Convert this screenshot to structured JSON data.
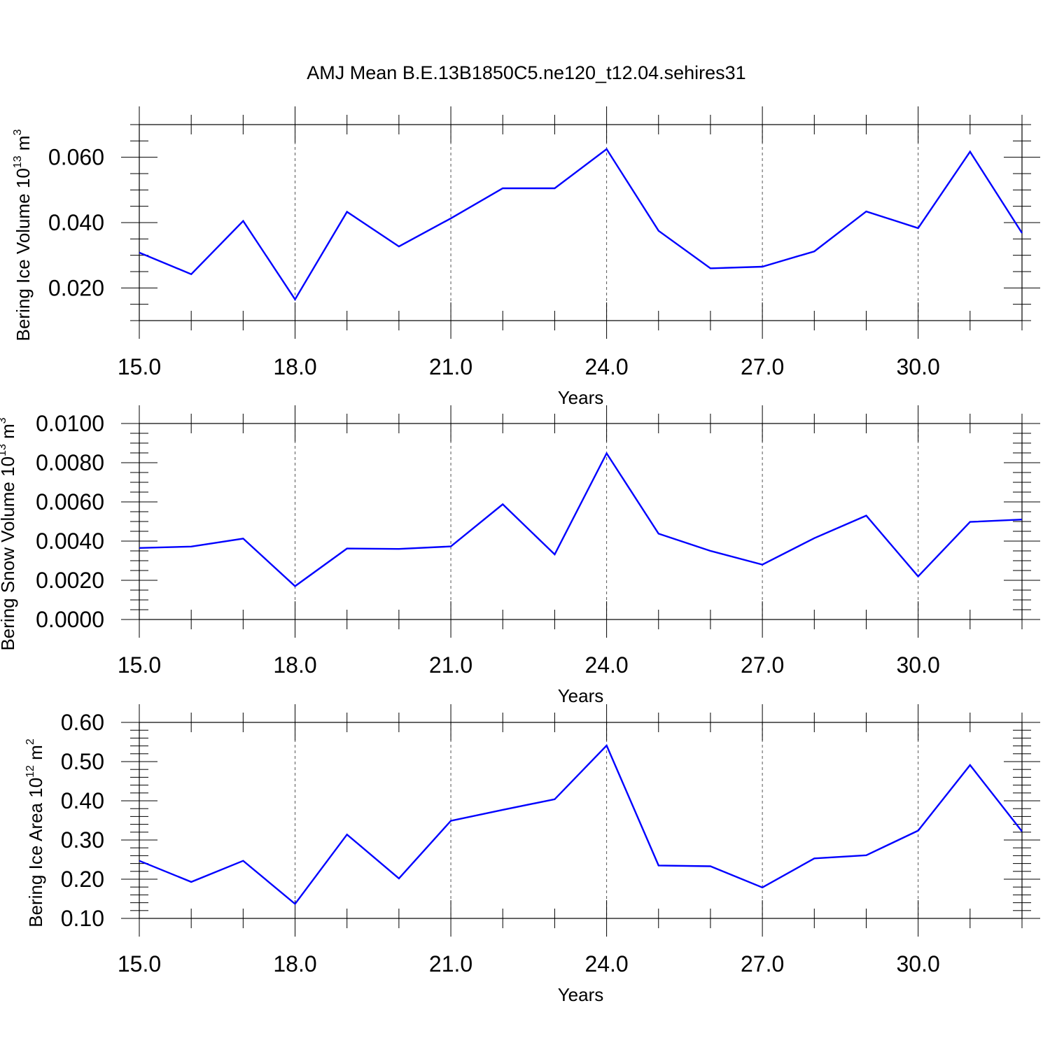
{
  "colors": {
    "line": "#0000ff",
    "axis": "#000000",
    "grid": "#555555"
  },
  "title": "AMJ Mean B.E.13B1850C5.ne120_t12.04.sehires31",
  "chart_data": [
    {
      "type": "line",
      "ylabel": "Bering Ice Volume 10",
      "ylabel_sup1": "13",
      "ylabel_mid": " m",
      "ylabel_sup2": "3",
      "xlabel": "Years",
      "xlim": [
        15,
        32
      ],
      "ylim": [
        0.01,
        0.07
      ],
      "x_ticks": [
        15,
        18,
        21,
        24,
        27,
        30
      ],
      "x_tick_labels": [
        "15.0",
        "18.0",
        "21.0",
        "24.0",
        "27.0",
        "30.0"
      ],
      "y_ticks": [
        0.02,
        0.04,
        0.06
      ],
      "y_tick_labels": [
        "0.020",
        "0.040",
        "0.060"
      ],
      "y_minor_step": 0.005,
      "grid": "vertical dashed at labeled x ticks",
      "x": [
        15,
        16,
        17,
        18,
        19,
        20,
        21,
        22,
        23,
        24,
        25,
        26,
        27,
        28,
        29,
        30,
        31,
        32
      ],
      "values": [
        0.0308,
        0.0242,
        0.0405,
        0.0165,
        0.0433,
        0.0327,
        0.0413,
        0.0505,
        0.0505,
        0.0625,
        0.0375,
        0.026,
        0.0265,
        0.0312,
        0.0434,
        0.0383,
        0.0617,
        0.0368
      ]
    },
    {
      "type": "line",
      "ylabel": "Bering Snow Volume 10",
      "ylabel_sup1": "13",
      "ylabel_mid": " m",
      "ylabel_sup2": "3",
      "xlabel": "Years",
      "xlim": [
        15,
        32
      ],
      "ylim": [
        0.0,
        0.01
      ],
      "x_ticks": [
        15,
        18,
        21,
        24,
        27,
        30
      ],
      "x_tick_labels": [
        "15.0",
        "18.0",
        "21.0",
        "24.0",
        "27.0",
        "30.0"
      ],
      "y_ticks": [
        0.0,
        0.002,
        0.004,
        0.006,
        0.008,
        0.01
      ],
      "y_tick_labels": [
        "0.0000",
        "0.0020",
        "0.0040",
        "0.0060",
        "0.0080",
        "0.0100"
      ],
      "y_minor_step": 0.0005,
      "grid": "vertical dashed at labeled x ticks",
      "x": [
        15,
        16,
        17,
        18,
        19,
        20,
        21,
        22,
        23,
        24,
        25,
        26,
        27,
        28,
        29,
        30,
        31,
        32
      ],
      "values": [
        0.00365,
        0.00372,
        0.00413,
        0.0017,
        0.00362,
        0.0036,
        0.00373,
        0.00588,
        0.00332,
        0.00848,
        0.00438,
        0.0035,
        0.0028,
        0.00415,
        0.0053,
        0.0022,
        0.00498,
        0.0051
      ]
    },
    {
      "type": "line",
      "ylabel": "Bering Ice Area 10",
      "ylabel_sup1": "12",
      "ylabel_mid": " m",
      "ylabel_sup2": "2",
      "xlabel": "Years",
      "xlim": [
        15,
        32
      ],
      "ylim": [
        0.1,
        0.6
      ],
      "x_ticks": [
        15,
        18,
        21,
        24,
        27,
        30
      ],
      "x_tick_labels": [
        "15.0",
        "18.0",
        "21.0",
        "24.0",
        "27.0",
        "30.0"
      ],
      "y_ticks": [
        0.1,
        0.2,
        0.3,
        0.4,
        0.5,
        0.6
      ],
      "y_tick_labels": [
        "0.10",
        "0.20",
        "0.30",
        "0.40",
        "0.50",
        "0.60"
      ],
      "y_minor_step": 0.02,
      "grid": "vertical dashed at labeled x ticks",
      "x": [
        15,
        16,
        17,
        18,
        19,
        20,
        21,
        22,
        23,
        24,
        25,
        26,
        27,
        28,
        29,
        30,
        31,
        32
      ],
      "values": [
        0.247,
        0.193,
        0.247,
        0.137,
        0.314,
        0.202,
        0.349,
        0.377,
        0.404,
        0.541,
        0.235,
        0.233,
        0.179,
        0.253,
        0.261,
        0.324,
        0.491,
        0.322
      ]
    }
  ]
}
